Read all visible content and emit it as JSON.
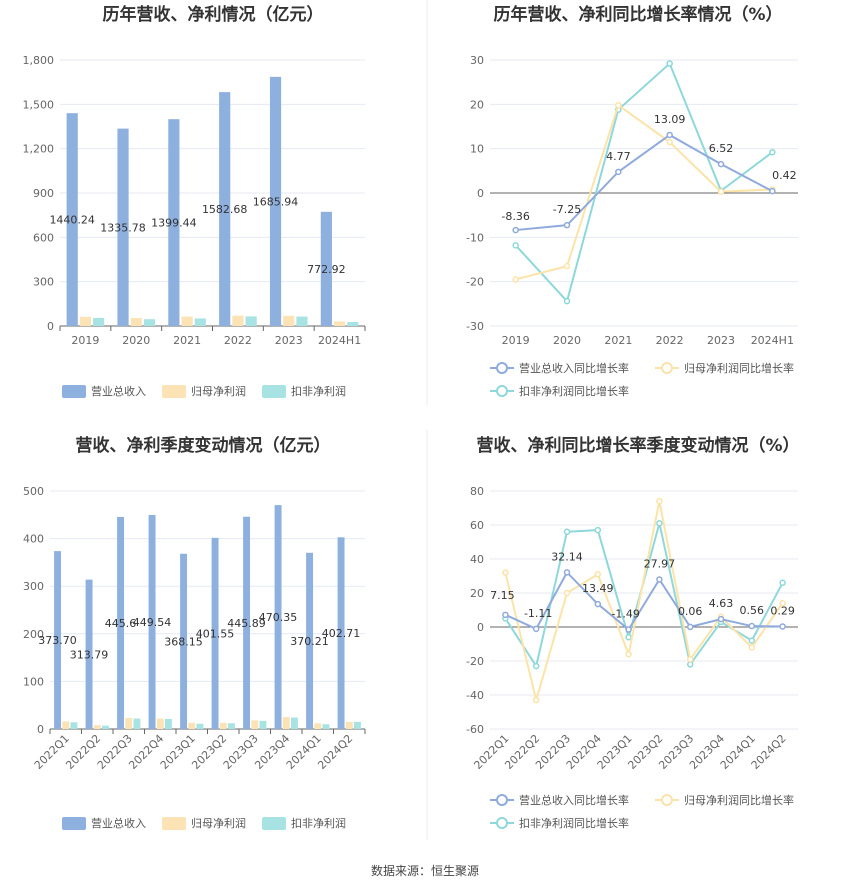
{
  "colors": {
    "revenue": "#8EB0DE",
    "net_profit": "#FBE3B5",
    "deducted_profit": "#A8E3E3",
    "revenue_line": "#8FAADC",
    "net_profit_line": "#FCE3A8",
    "deducted_line": "#8ED8DB",
    "grid": "#E5E9F2",
    "divider": "#EEEEEE"
  },
  "source_text": "数据来源：恒生聚源",
  "chart_data": [
    {
      "id": "annual_amount",
      "type": "bar",
      "title": "历年营收、净利情况（亿元）",
      "categories": [
        "2019",
        "2020",
        "2021",
        "2022",
        "2023",
        "2024H1"
      ],
      "ylim": [
        0,
        1800
      ],
      "yticks": [
        0,
        300,
        600,
        900,
        1200,
        1500,
        1800
      ],
      "ytick_labels": [
        "0",
        "300",
        "600",
        "900",
        "1,200",
        "1,500",
        "1,800"
      ],
      "grid": true,
      "legend_position": "bottom",
      "series": [
        {
          "name": "营业总收入",
          "values": [
            1440.24,
            1335.78,
            1399.44,
            1582.68,
            1685.94,
            772.92
          ],
          "labels": [
            "1440.24",
            "1335.78",
            "1399.44",
            "1582.68",
            "1685.94",
            "772.92"
          ]
        },
        {
          "name": "归母净利润",
          "values": [
            62,
            55,
            64,
            70,
            69,
            31
          ]
        },
        {
          "name": "扣非净利润",
          "values": [
            55,
            46,
            51,
            65,
            64,
            27
          ]
        }
      ]
    },
    {
      "id": "annual_growth",
      "type": "line",
      "title": "历年营收、净利同比增长率情况（%）",
      "categories": [
        "2019",
        "2020",
        "2021",
        "2022",
        "2023",
        "2024H1"
      ],
      "ylim": [
        -30,
        30
      ],
      "yticks": [
        -30,
        -20,
        -10,
        0,
        10,
        20,
        30
      ],
      "ytick_labels": [
        "-30",
        "-20",
        "-10",
        "0",
        "10",
        "20",
        "30"
      ],
      "grid": true,
      "legend_position": "bottom",
      "series": [
        {
          "name": "营业总收入同比增长率",
          "values": [
            -8.36,
            -7.25,
            4.77,
            13.09,
            6.52,
            0.42
          ],
          "labels": [
            "-8.36",
            "-7.25",
            "4.77",
            "13.09",
            "6.52",
            "0.42"
          ]
        },
        {
          "name": "归母净利润同比增长率",
          "values": [
            -19.5,
            -16.5,
            19.8,
            11.5,
            0.3,
            0.8
          ]
        },
        {
          "name": "扣非净利润同比增长率",
          "values": [
            -11.8,
            -24.4,
            18.8,
            29.2,
            0.5,
            9.2
          ]
        }
      ]
    },
    {
      "id": "quarterly_amount",
      "type": "bar",
      "title": "营收、净利季度变动情况（亿元）",
      "categories": [
        "2022Q1",
        "2022Q2",
        "2022Q3",
        "2022Q4",
        "2023Q1",
        "2023Q2",
        "2023Q3",
        "2023Q4",
        "2024Q1",
        "2024Q2"
      ],
      "ylim": [
        0,
        500
      ],
      "yticks": [
        0,
        100,
        200,
        300,
        400,
        500
      ],
      "ytick_labels": [
        "0",
        "100",
        "200",
        "300",
        "400",
        "500"
      ],
      "grid": true,
      "legend_position": "bottom",
      "series": [
        {
          "name": "营业总收入",
          "values": [
            373.7,
            313.79,
            445.6,
            449.54,
            368.15,
            401.55,
            445.89,
            470.35,
            370.21,
            402.71
          ],
          "labels": [
            "373.70",
            "313.79",
            "445.6",
            "449.54",
            "368.15",
            "401.55",
            "445.89",
            "470.35",
            "370.21",
            "402.71"
          ]
        },
        {
          "name": "归母净利润",
          "values": [
            16,
            8,
            23,
            22,
            13,
            13,
            18,
            25,
            12,
            15
          ]
        },
        {
          "name": "扣非净利润",
          "values": [
            14,
            7,
            22,
            21,
            11,
            12,
            17,
            24,
            10,
            15
          ]
        }
      ]
    },
    {
      "id": "quarterly_growth",
      "type": "line",
      "title": "营收、净利同比增长率季度变动情况（%）",
      "categories": [
        "2022Q1",
        "2022Q2",
        "2022Q3",
        "2022Q4",
        "2023Q1",
        "2023Q2",
        "2023Q3",
        "2023Q4",
        "2024Q1",
        "2024Q2"
      ],
      "ylim": [
        -60,
        80
      ],
      "yticks": [
        -60,
        -40,
        -20,
        0,
        20,
        40,
        60,
        80
      ],
      "ytick_labels": [
        "-60",
        "-40",
        "-20",
        "0",
        "20",
        "40",
        "60",
        "80"
      ],
      "grid": true,
      "legend_position": "bottom",
      "series": [
        {
          "name": "营业总收入同比增长率",
          "values": [
            7.15,
            -1.11,
            32.14,
            13.49,
            -1.49,
            27.97,
            0.06,
            4.63,
            0.56,
            0.29
          ],
          "labels": [
            "7.15",
            "-1.11",
            "32.14",
            "13.49",
            "-1.49",
            "27.97",
            "0.06",
            "4.63",
            "0.56",
            "0.29"
          ]
        },
        {
          "name": "归母净利润同比增长率",
          "values": [
            32,
            -43,
            20,
            31,
            -16,
            74,
            -19,
            6,
            -12,
            14
          ]
        },
        {
          "name": "扣非净利润同比增长率",
          "values": [
            5,
            -23,
            56,
            57,
            -6,
            61,
            -22,
            3,
            -8,
            26
          ]
        }
      ]
    }
  ]
}
